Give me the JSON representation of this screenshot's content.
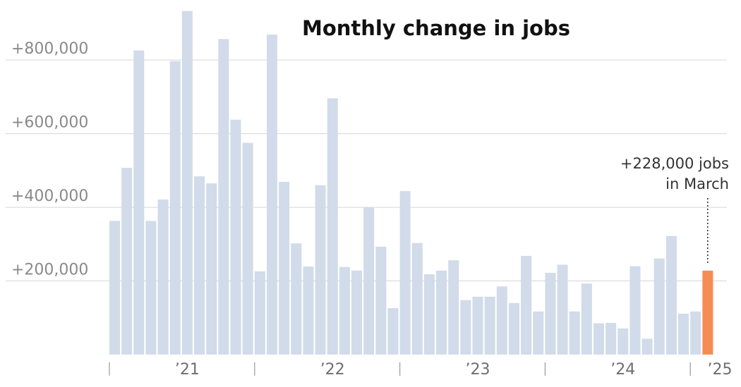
{
  "chart_data": {
    "type": "bar",
    "title": "Monthly change in jobs",
    "xlabel": "",
    "ylabel": "",
    "ylim": [
      0,
      940000
    ],
    "grid": true,
    "y_ticks": [
      {
        "value": 200000,
        "label": "+200,000"
      },
      {
        "value": 400000,
        "label": "+400,000"
      },
      {
        "value": 600000,
        "label": "+600,000"
      },
      {
        "value": 800000,
        "label": "+800,000"
      }
    ],
    "x_tick_labels": [
      {
        "label": "’21",
        "index": 6
      },
      {
        "label": "’22",
        "index": 18
      },
      {
        "label": "’23",
        "index": 30
      },
      {
        "label": "’24",
        "index": 42
      },
      {
        "label": "’25",
        "index": 50
      }
    ],
    "year_separators": [
      0,
      12,
      24,
      36,
      48
    ],
    "values": [
      363000,
      507000,
      826000,
      363000,
      421000,
      797000,
      933000,
      484000,
      465000,
      857000,
      638000,
      575000,
      226000,
      869000,
      469000,
      302000,
      239000,
      460000,
      696000,
      238000,
      228000,
      400000,
      293000,
      126000,
      444000,
      303000,
      218000,
      228000,
      256000,
      148000,
      157000,
      157000,
      185000,
      140000,
      268000,
      117000,
      222000,
      244000,
      117000,
      193000,
      85000,
      86000,
      71000,
      240000,
      43000,
      261000,
      322000,
      111000,
      117000,
      228000
    ],
    "highlight_index": 49,
    "colors": {
      "bar": "#d1dbe9",
      "highlight": "#f58c54",
      "grid": "#d6d6d6",
      "axis": "#999999"
    },
    "annotation": {
      "line1": "+228,000 jobs",
      "line2": "in March"
    }
  }
}
